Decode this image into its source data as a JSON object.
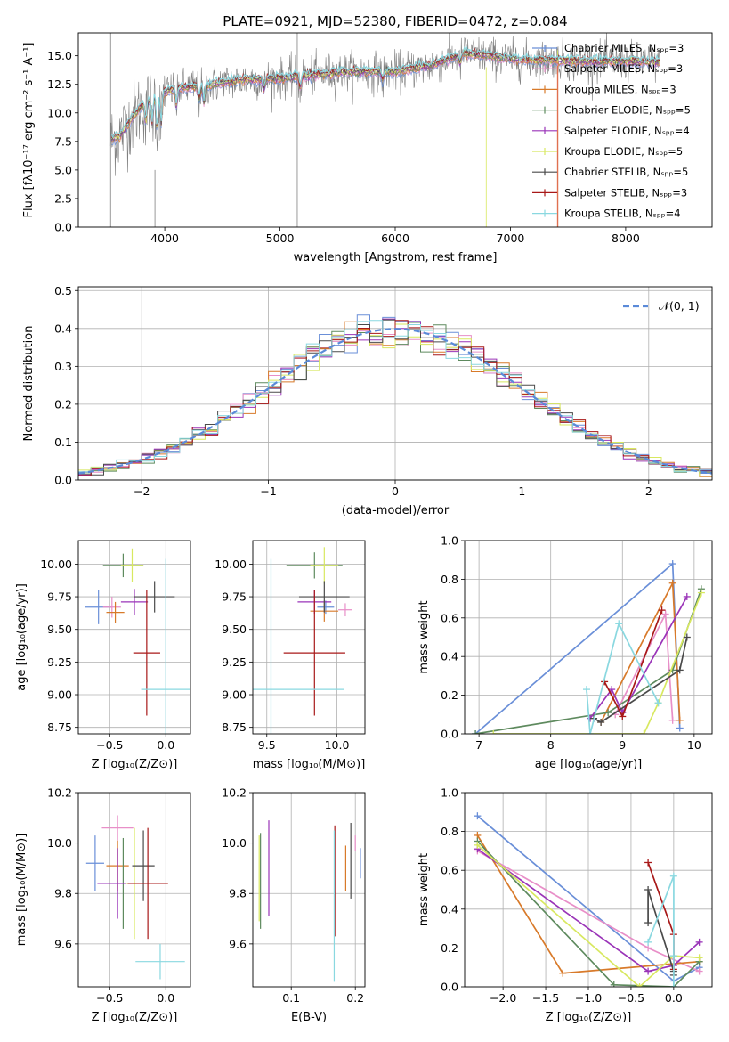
{
  "colors": [
    "#6a8fd8",
    "#e88fc8",
    "#d87a2a",
    "#5e8a5e",
    "#9a34b8",
    "#d8e860",
    "#4a4a4a",
    "#a81818",
    "#8ad8e0"
  ],
  "chart_data": [
    {
      "id": "spectrum",
      "type": "line",
      "title": "PLATE=0921, MJD=52380, FIBERID=0472, z=0.084",
      "xlabel": "wavelength [Angstrom, rest frame]",
      "ylabel": "Flux [fλ10⁻¹⁷ erg cm⁻² s⁻¹ A⁻¹]",
      "xlim": [
        3250,
        8750
      ],
      "ylim": [
        0,
        17
      ],
      "xticks": [
        4000,
        5000,
        6000,
        7000,
        8000
      ],
      "yticks": [
        0.0,
        2.5,
        5.0,
        7.5,
        10.0,
        12.5,
        15.0
      ],
      "legend": [
        "Chabrier MILES, Nₛₚₚ=3",
        "Salpeter MILES, Nₛₚₚ=3",
        "Kroupa MILES, Nₛₚₚ=3",
        "Chabrier ELODIE, Nₛₚₚ=5",
        "Salpeter ELODIE, Nₛₚₚ=4",
        "Kroupa ELODIE, Nₛₚₚ=5",
        "Chabrier STELIB, Nₛₚₚ=5",
        "Salpeter STELIB, Nₛₚₚ=3",
        "Kroupa STELIB, Nₛₚₚ=4"
      ],
      "legend_position": "right",
      "data_color": "#808080",
      "continuum": {
        "x": [
          3530,
          3600,
          3700,
          3800,
          3900,
          4000,
          4100,
          4300,
          4500,
          4700,
          5000,
          5300,
          5600,
          6000,
          6300,
          6600,
          6800,
          7000,
          7200,
          7400,
          7600,
          8000,
          8300
        ],
        "y": [
          7.6,
          7.9,
          9.3,
          10.6,
          11.4,
          11.8,
          12.1,
          12.3,
          12.6,
          12.9,
          13.0,
          13.3,
          13.6,
          13.6,
          14.1,
          15.2,
          15.0,
          14.7,
          14.6,
          14.6,
          14.5,
          14.5,
          14.4
        ]
      }
    },
    {
      "id": "residuals",
      "type": "step",
      "xlabel": "(data-model)/error",
      "ylabel": "Normed distribution",
      "xlim": [
        -2.5,
        2.5
      ],
      "ylim": [
        0,
        0.51
      ],
      "xticks": [
        -2,
        -1,
        0,
        1,
        2
      ],
      "yticks": [
        0.0,
        0.1,
        0.2,
        0.3,
        0.4,
        0.5
      ],
      "legend": [
        "𝒩(0, 1)"
      ],
      "legend_position": "top-right",
      "gaussian": {
        "mean": 0,
        "sigma": 1
      }
    },
    {
      "id": "age-vs-Z",
      "type": "errorbar",
      "xlabel": "Z [log₁₀(Z/Z⊙)]",
      "ylabel": "age  [log₁₀(age/yr)]",
      "xlim": [
        -0.78,
        0.22
      ],
      "ylim": [
        8.7,
        10.18
      ],
      "xticks": [
        -0.5,
        0.0
      ],
      "yticks": [
        8.75,
        9.0,
        9.25,
        9.5,
        9.75,
        10.0
      ],
      "points": [
        {
          "x": -0.6,
          "y": 9.67,
          "xerr": 0.12,
          "yerr": 0.13
        },
        {
          "x": -0.48,
          "y": 9.67,
          "xerr": 0.08,
          "yerr": 0.08
        },
        {
          "x": -0.45,
          "y": 9.63,
          "xerr": 0.08,
          "yerr": 0.08
        },
        {
          "x": -0.38,
          "y": 9.99,
          "xerr": 0.18,
          "yerr": 0.09
        },
        {
          "x": -0.28,
          "y": 9.71,
          "xerr": 0.12,
          "yerr": 0.1
        },
        {
          "x": -0.3,
          "y": 9.99,
          "xerr": 0.1,
          "yerr": 0.13
        },
        {
          "x": -0.1,
          "y": 9.75,
          "xerr": 0.18,
          "yerr": 0.12
        },
        {
          "x": -0.17,
          "y": 9.32,
          "xerr": 0.12,
          "yerr": 0.48
        },
        {
          "x": 0.0,
          "y": 9.04,
          "xerr": 0.22,
          "yerr": 1.0
        }
      ]
    },
    {
      "id": "age-vs-mass",
      "type": "errorbar",
      "xlabel": "mass [log₁₀(M/M⊙)]",
      "ylabel": "",
      "xlim": [
        9.4,
        10.2
      ],
      "ylim": [
        8.7,
        10.18
      ],
      "xticks": [
        9.5,
        10.0
      ],
      "yticks": [
        8.75,
        9.0,
        9.25,
        9.5,
        9.75,
        10.0
      ],
      "points": [
        {
          "x": 9.92,
          "y": 9.67,
          "xerr": 0.06,
          "yerr": 0.05
        },
        {
          "x": 10.06,
          "y": 9.65,
          "xerr": 0.05,
          "yerr": 0.05
        },
        {
          "x": 9.91,
          "y": 9.64,
          "xerr": 0.1,
          "yerr": 0.08
        },
        {
          "x": 9.84,
          "y": 9.99,
          "xerr": 0.2,
          "yerr": 0.1
        },
        {
          "x": 9.84,
          "y": 9.71,
          "xerr": 0.12,
          "yerr": 0.09
        },
        {
          "x": 9.91,
          "y": 9.99,
          "xerr": 0.1,
          "yerr": 0.14
        },
        {
          "x": 9.91,
          "y": 9.75,
          "xerr": 0.18,
          "yerr": 0.12
        },
        {
          "x": 9.84,
          "y": 9.32,
          "xerr": 0.22,
          "yerr": 0.48
        },
        {
          "x": 9.53,
          "y": 9.04,
          "xerr": 0.52,
          "yerr": 1.0
        }
      ]
    },
    {
      "id": "weight-vs-age",
      "type": "line",
      "xlabel": "age  [log₁₀(age/yr)]",
      "ylabel": "mass weight",
      "xlim": [
        6.8,
        10.25
      ],
      "ylim": [
        0,
        1.0
      ],
      "xticks": [
        7,
        8,
        9,
        10
      ],
      "yticks": [
        0.0,
        0.2,
        0.4,
        0.6,
        0.8,
        1.0
      ],
      "series": [
        {
          "x": [
            6.95,
            9.7,
            9.8
          ],
          "y": [
            0.0,
            0.88,
            0.03
          ]
        },
        {
          "x": [
            8.9,
            9.6,
            9.7
          ],
          "y": [
            0.1,
            0.62,
            0.07
          ]
        },
        {
          "x": [
            8.7,
            9.7,
            9.8
          ],
          "y": [
            0.06,
            0.78,
            0.07
          ]
        },
        {
          "x": [
            6.95,
            8.8,
            9.7,
            10.1
          ],
          "y": [
            0.0,
            0.11,
            0.33,
            0.75
          ]
        },
        {
          "x": [
            8.55,
            8.85,
            9.0,
            9.9
          ],
          "y": [
            0.08,
            0.23,
            0.11,
            0.71
          ]
        },
        {
          "x": [
            7.2,
            9.3,
            9.5,
            10.1
          ],
          "y": [
            0.0,
            0.0,
            0.16,
            0.73
          ]
        },
        {
          "x": [
            8.6,
            8.7,
            9.8,
            9.9
          ],
          "y": [
            0.08,
            0.06,
            0.33,
            0.5
          ]
        },
        {
          "x": [
            8.75,
            9.0,
            9.55
          ],
          "y": [
            0.27,
            0.09,
            0.64
          ]
        },
        {
          "x": [
            8.5,
            8.55,
            8.95,
            9.5
          ],
          "y": [
            0.23,
            0.0,
            0.57,
            0.16
          ]
        }
      ]
    },
    {
      "id": "mass-vs-Z",
      "type": "errorbar",
      "xlabel": "Z [log₁₀(Z/Z⊙)]",
      "ylabel": "mass [log₁₀(M/M⊙)]",
      "xlim": [
        -0.78,
        0.22
      ],
      "ylim": [
        9.43,
        10.2
      ],
      "xticks": [
        -0.5,
        0.0
      ],
      "yticks": [
        9.6,
        9.8,
        10.0,
        10.2
      ],
      "points": [
        {
          "x": -0.63,
          "y": 9.92,
          "xerr": 0.08,
          "yerr": 0.11
        },
        {
          "x": -0.43,
          "y": 10.06,
          "xerr": 0.14,
          "yerr": 0.05
        },
        {
          "x": -0.43,
          "y": 9.91,
          "xerr": 0.1,
          "yerr": 0.1
        },
        {
          "x": -0.38,
          "y": 9.84,
          "xerr": 0.22,
          "yerr": 0.18
        },
        {
          "x": -0.43,
          "y": 9.84,
          "xerr": 0.18,
          "yerr": 0.14
        },
        {
          "x": -0.28,
          "y": 9.84,
          "xerr": 0.08,
          "yerr": 0.22
        },
        {
          "x": -0.2,
          "y": 9.91,
          "xerr": 0.1,
          "yerr": 0.14
        },
        {
          "x": -0.16,
          "y": 9.84,
          "xerr": 0.18,
          "yerr": 0.22
        },
        {
          "x": -0.05,
          "y": 9.53,
          "xerr": 0.22,
          "yerr": 0.07
        }
      ]
    },
    {
      "id": "mass-vs-ebv",
      "type": "errorbar",
      "xlabel": "E(B-V)",
      "ylabel": "",
      "xlim": [
        0.04,
        0.215
      ],
      "ylim": [
        9.43,
        10.2
      ],
      "xticks": [
        0.1,
        0.2
      ],
      "yticks": [
        9.6,
        9.8,
        10.0,
        10.2
      ],
      "points": [
        {
          "x": 0.208,
          "y": 9.92,
          "xerr": 0.0,
          "yerr": 0.06
        },
        {
          "x": 0.2,
          "y": 10.0,
          "xerr": 0.0,
          "yerr": 0.03
        },
        {
          "x": 0.185,
          "y": 9.9,
          "xerr": 0.0,
          "yerr": 0.09
        },
        {
          "x": 0.052,
          "y": 9.85,
          "xerr": 0.0,
          "yerr": 0.19
        },
        {
          "x": 0.065,
          "y": 9.9,
          "xerr": 0.0,
          "yerr": 0.19
        },
        {
          "x": 0.05,
          "y": 9.86,
          "xerr": 0.0,
          "yerr": 0.17
        },
        {
          "x": 0.193,
          "y": 9.93,
          "xerr": 0.0,
          "yerr": 0.15
        },
        {
          "x": 0.168,
          "y": 9.85,
          "xerr": 0.0,
          "yerr": 0.22
        },
        {
          "x": 0.167,
          "y": 9.75,
          "xerr": 0.0,
          "yerr": 0.3
        }
      ]
    },
    {
      "id": "weight-vs-Z",
      "type": "line",
      "xlabel": "Z [log₁₀(Z/Z⊙)]",
      "ylabel": "mass weight",
      "xlim": [
        -2.45,
        0.45
      ],
      "ylim": [
        0,
        1.0
      ],
      "xticks": [
        -2.0,
        -1.5,
        -1.0,
        -0.5,
        0.0
      ],
      "yticks": [
        0.0,
        0.2,
        0.4,
        0.6,
        0.8,
        1.0
      ],
      "series": [
        {
          "x": [
            -2.3,
            0.0,
            0.3
          ],
          "y": [
            0.88,
            0.03,
            0.1
          ]
        },
        {
          "x": [
            -2.3,
            -0.3,
            0.3
          ],
          "y": [
            0.7,
            0.2,
            0.08
          ]
        },
        {
          "x": [
            -2.3,
            -1.3,
            0.3
          ],
          "y": [
            0.78,
            0.07,
            0.13
          ]
        },
        {
          "x": [
            -2.3,
            -0.7,
            0.0,
            0.3
          ],
          "y": [
            0.75,
            0.01,
            0.0,
            0.13
          ]
        },
        {
          "x": [
            -2.3,
            -0.3,
            0.0,
            0.3
          ],
          "y": [
            0.71,
            0.08,
            0.11,
            0.23
          ]
        },
        {
          "x": [
            -2.3,
            -0.4,
            0.0,
            0.3
          ],
          "y": [
            0.73,
            0.0,
            0.16,
            0.15
          ]
        },
        {
          "x": [
            -0.3,
            -0.3,
            0.0,
            0.0
          ],
          "y": [
            0.33,
            0.5,
            0.08,
            0.06
          ]
        },
        {
          "x": [
            -0.3,
            0.0,
            0.0
          ],
          "y": [
            0.64,
            0.27,
            0.09
          ]
        },
        {
          "x": [
            -0.3,
            0.0,
            0.0,
            0.0
          ],
          "y": [
            0.23,
            0.57,
            0.0,
            0.16
          ]
        }
      ]
    }
  ]
}
